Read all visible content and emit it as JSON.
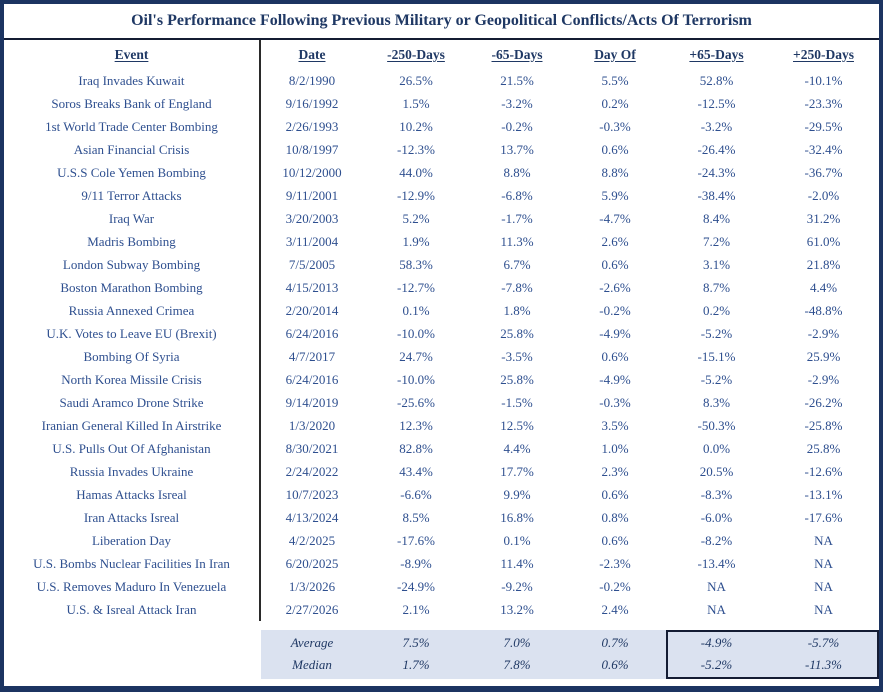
{
  "colors": {
    "navy": "#1f3864",
    "data_blue": "#2e4f8f",
    "footer_bg": "#dbe2f0",
    "line": "#141c33",
    "divider": "#2a2a2a",
    "border": "#1c3461"
  },
  "chart_data": {
    "type": "table",
    "title": "Oil's Performance Following Previous Military or Geopolitical Conflicts/Acts Of Terrorism",
    "columns": [
      "Event",
      "Date",
      "-250-Days",
      "-65-Days",
      "Day Of",
      "+65-Days",
      "+250-Days"
    ],
    "rows": [
      {
        "event": "Iraq Invades Kuwait",
        "date": "8/2/1990",
        "values": [
          "26.5%",
          "21.5%",
          "5.5%",
          "52.8%",
          "-10.1%"
        ]
      },
      {
        "event": "Soros Breaks Bank of England",
        "date": "9/16/1992",
        "values": [
          "1.5%",
          "-3.2%",
          "0.2%",
          "-12.5%",
          "-23.3%"
        ]
      },
      {
        "event": "1st World Trade Center Bombing",
        "date": "2/26/1993",
        "values": [
          "10.2%",
          "-0.2%",
          "-0.3%",
          "-3.2%",
          "-29.5%"
        ]
      },
      {
        "event": "Asian Financial Crisis",
        "date": "10/8/1997",
        "values": [
          "-12.3%",
          "13.7%",
          "0.6%",
          "-26.4%",
          "-32.4%"
        ]
      },
      {
        "event": "U.S.S Cole Yemen Bombing",
        "date": "10/12/2000",
        "values": [
          "44.0%",
          "8.8%",
          "8.8%",
          "-24.3%",
          "-36.7%"
        ]
      },
      {
        "event": "9/11 Terror Attacks",
        "date": "9/11/2001",
        "values": [
          "-12.9%",
          "-6.8%",
          "5.9%",
          "-38.4%",
          "-2.0%"
        ]
      },
      {
        "event": "Iraq War",
        "date": "3/20/2003",
        "values": [
          "5.2%",
          "-1.7%",
          "-4.7%",
          "8.4%",
          "31.2%"
        ]
      },
      {
        "event": "Madris Bombing",
        "date": "3/11/2004",
        "values": [
          "1.9%",
          "11.3%",
          "2.6%",
          "7.2%",
          "61.0%"
        ]
      },
      {
        "event": "London Subway Bombing",
        "date": "7/5/2005",
        "values": [
          "58.3%",
          "6.7%",
          "0.6%",
          "3.1%",
          "21.8%"
        ]
      },
      {
        "event": "Boston Marathon Bombing",
        "date": "4/15/2013",
        "values": [
          "-12.7%",
          "-7.8%",
          "-2.6%",
          "8.7%",
          "4.4%"
        ]
      },
      {
        "event": "Russia Annexed Crimea",
        "date": "2/20/2014",
        "values": [
          "0.1%",
          "1.8%",
          "-0.2%",
          "0.2%",
          "-48.8%"
        ]
      },
      {
        "event": "U.K. Votes to Leave EU (Brexit)",
        "date": "6/24/2016",
        "values": [
          "-10.0%",
          "25.8%",
          "-4.9%",
          "-5.2%",
          "-2.9%"
        ]
      },
      {
        "event": "Bombing Of Syria",
        "date": "4/7/2017",
        "values": [
          "24.7%",
          "-3.5%",
          "0.6%",
          "-15.1%",
          "25.9%"
        ]
      },
      {
        "event": "North Korea Missile Crisis",
        "date": "6/24/2016",
        "values": [
          "-10.0%",
          "25.8%",
          "-4.9%",
          "-5.2%",
          "-2.9%"
        ]
      },
      {
        "event": "Saudi Aramco Drone Strike",
        "date": "9/14/2019",
        "values": [
          "-25.6%",
          "-1.5%",
          "-0.3%",
          "8.3%",
          "-26.2%"
        ]
      },
      {
        "event": "Iranian General Killed In Airstrike",
        "date": "1/3/2020",
        "values": [
          "12.3%",
          "12.5%",
          "3.5%",
          "-50.3%",
          "-25.8%"
        ]
      },
      {
        "event": "U.S. Pulls Out Of Afghanistan",
        "date": "8/30/2021",
        "values": [
          "82.8%",
          "4.4%",
          "1.0%",
          "0.0%",
          "25.8%"
        ]
      },
      {
        "event": "Russia Invades Ukraine",
        "date": "2/24/2022",
        "values": [
          "43.4%",
          "17.7%",
          "2.3%",
          "20.5%",
          "-12.6%"
        ]
      },
      {
        "event": "Hamas Attacks Isreal",
        "date": "10/7/2023",
        "values": [
          "-6.6%",
          "9.9%",
          "0.6%",
          "-8.3%",
          "-13.1%"
        ]
      },
      {
        "event": "Iran Attacks Isreal",
        "date": "4/13/2024",
        "values": [
          "8.5%",
          "16.8%",
          "0.8%",
          "-6.0%",
          "-17.6%"
        ]
      },
      {
        "event": "Liberation Day",
        "date": "4/2/2025",
        "values": [
          "-17.6%",
          "0.1%",
          "0.6%",
          "-8.2%",
          "NA"
        ]
      },
      {
        "event": "U.S. Bombs Nuclear Facilities In Iran",
        "date": "6/20/2025",
        "values": [
          "-8.9%",
          "11.4%",
          "-2.3%",
          "-13.4%",
          "NA"
        ]
      },
      {
        "event": "U.S. Removes Maduro In Venezuela",
        "date": "1/3/2026",
        "values": [
          "-24.9%",
          "-9.2%",
          "-0.2%",
          "NA",
          "NA"
        ]
      },
      {
        "event": "U.S. & Isreal Attack Iran",
        "date": "2/27/2026",
        "values": [
          "2.1%",
          "13.2%",
          "2.4%",
          "NA",
          "NA"
        ]
      }
    ],
    "summary": [
      {
        "label": "Average",
        "values": [
          "7.5%",
          "7.0%",
          "0.7%",
          "-4.9%",
          "-5.7%"
        ]
      },
      {
        "label": "Median",
        "values": [
          "1.7%",
          "7.8%",
          "0.6%",
          "-5.2%",
          "-11.3%"
        ]
      }
    ],
    "summary_highlight_columns": [
      "+65-Days",
      "+250-Days"
    ],
    "layout": {
      "grid": false,
      "legend": "none"
    }
  }
}
